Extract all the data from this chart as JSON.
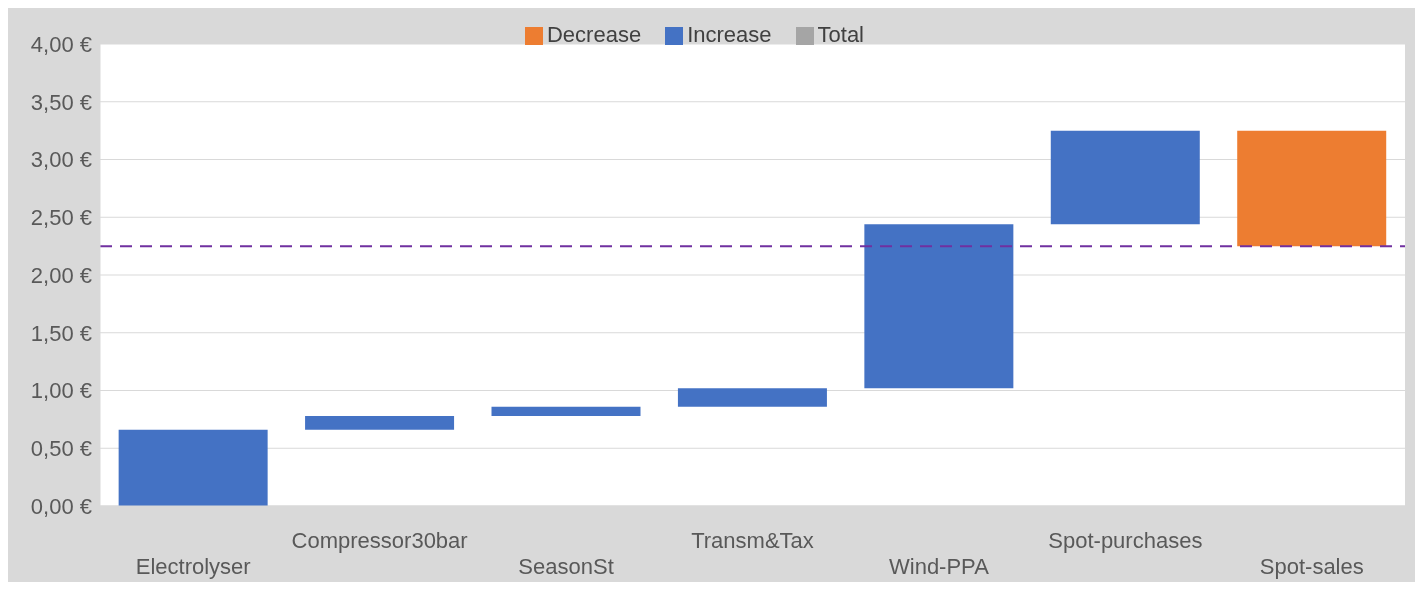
{
  "chart_data": {
    "type": "bar",
    "categories": [
      "Electrolyser",
      "Compressor30bar",
      "SeasonSt",
      "Transm&Tax",
      "Wind-PPA",
      "Spot-purchases",
      "Spot-sales"
    ],
    "series": [
      {
        "name": "Increase",
        "color": "#4472c4",
        "values": [
          0.66,
          0.12,
          0.08,
          0.16,
          1.42,
          0.81,
          null
        ],
        "base": [
          0,
          0.66,
          0.78,
          0.86,
          1.02,
          2.44,
          null
        ]
      },
      {
        "name": "Decrease",
        "color": "#ed7d31",
        "values": [
          null,
          null,
          null,
          null,
          null,
          null,
          -1.0
        ],
        "base": [
          null,
          null,
          null,
          null,
          null,
          null,
          3.25
        ]
      },
      {
        "name": "Total",
        "color": "#a5a5a5",
        "values": [
          null,
          null,
          null,
          null,
          null,
          null,
          null
        ]
      }
    ],
    "ylim": [
      0,
      4
    ],
    "yticks": [
      {
        "value": 0,
        "label": "0,00 €"
      },
      {
        "value": 0.5,
        "label": "0,50 €"
      },
      {
        "value": 1,
        "label": "1,00 €"
      },
      {
        "value": 1.5,
        "label": "1,50 €"
      },
      {
        "value": 2,
        "label": "2,00 €"
      },
      {
        "value": 2.5,
        "label": "2,50 €"
      },
      {
        "value": 3,
        "label": "3,00 €"
      },
      {
        "value": 3.5,
        "label": "3,50 €"
      },
      {
        "value": 4,
        "label": "4,00 €"
      }
    ],
    "grid": "y",
    "legend": "top",
    "ref_lines": [
      {
        "axis": "y",
        "value": 2.25,
        "color": "#7030a0",
        "line_style": "dashed"
      }
    ]
  }
}
